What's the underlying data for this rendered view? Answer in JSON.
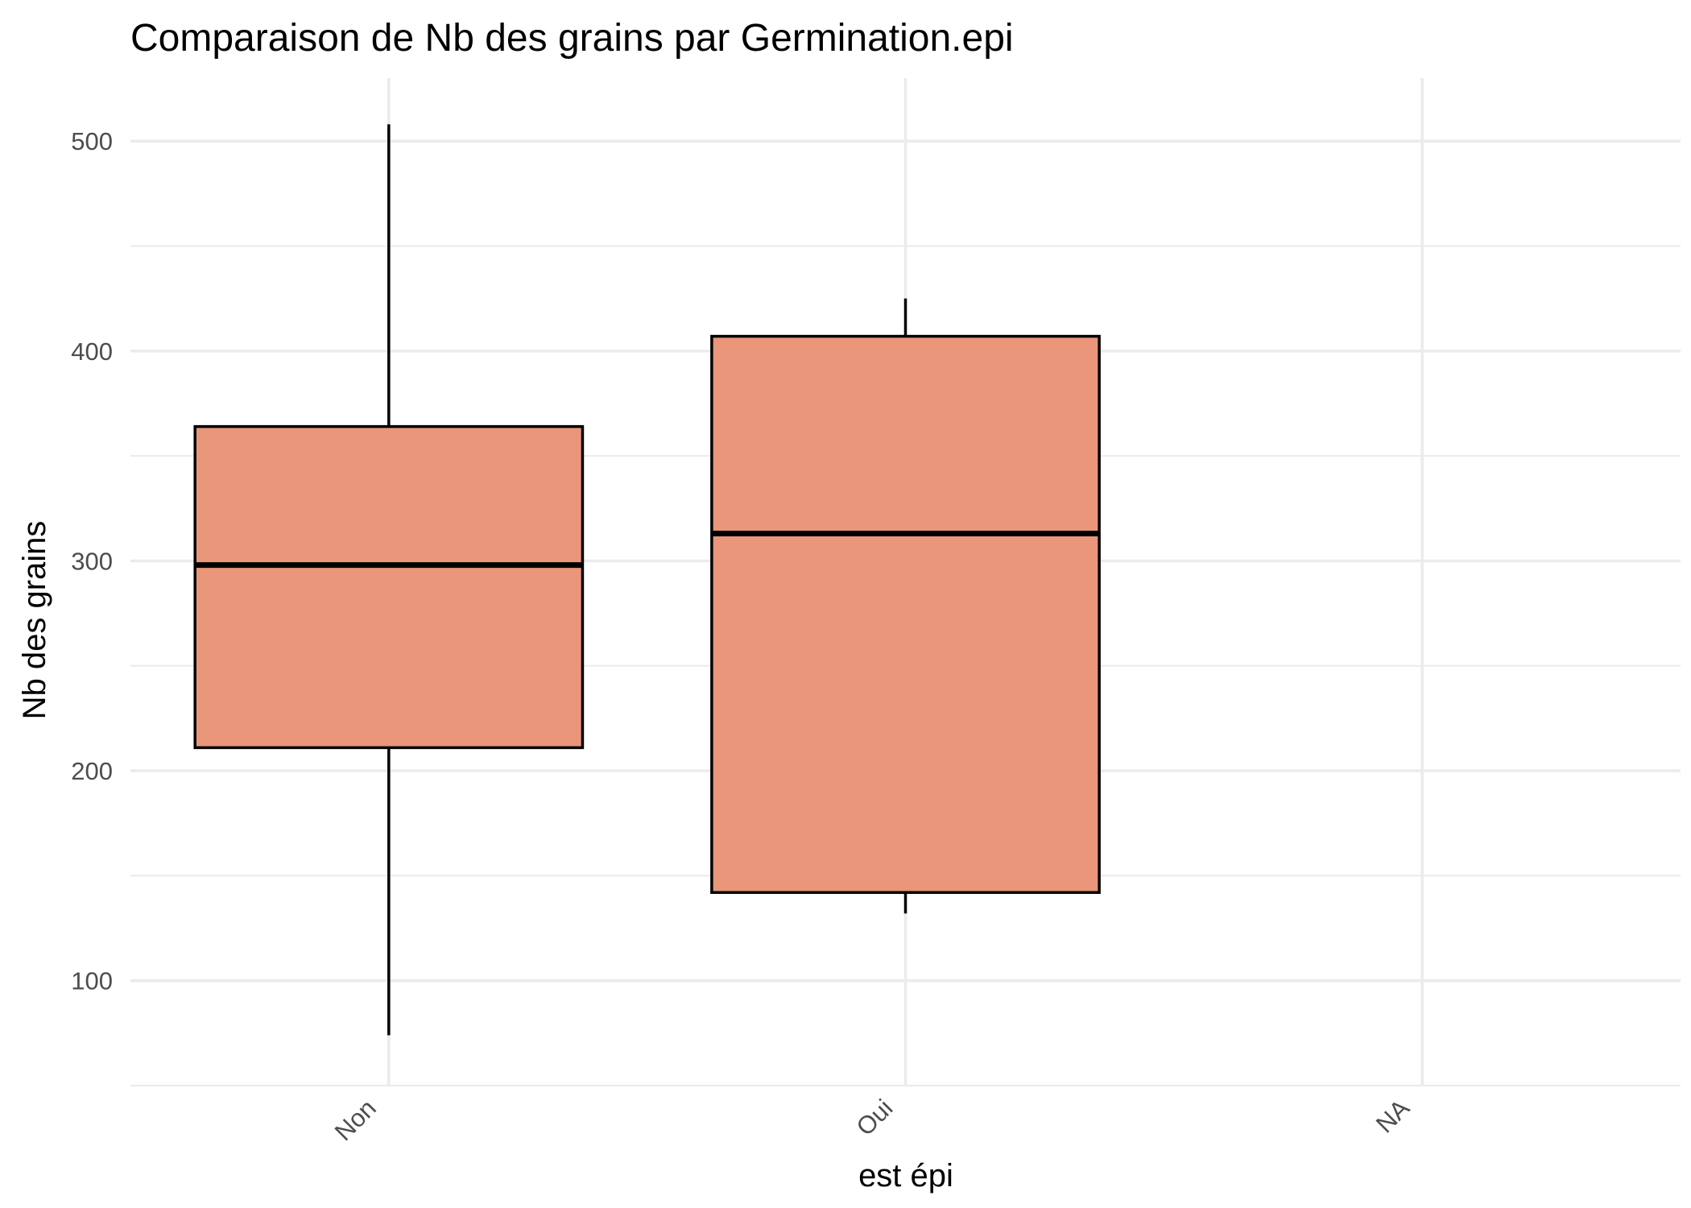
{
  "chart_data": {
    "type": "boxplot",
    "title": "Comparaison de Nb des grains par Germination.epi",
    "xlabel": "est épi",
    "ylabel": "Nb des grains",
    "categories": [
      "Non",
      "Oui",
      "NA"
    ],
    "boxes": [
      {
        "category": "Non",
        "whisker_low": 74,
        "q1": 211,
        "median": 298,
        "q3": 364,
        "whisker_high": 508
      },
      {
        "category": "Oui",
        "whisker_low": 132,
        "q1": 142,
        "median": 313,
        "q3": 407,
        "whisker_high": 425
      },
      {
        "category": "NA",
        "whisker_low": null,
        "q1": null,
        "median": null,
        "q3": null,
        "whisker_high": null
      }
    ],
    "y_ticks": [
      100,
      200,
      300,
      400,
      500
    ],
    "ylim": [
      50,
      530
    ],
    "grid": true,
    "legend": "none",
    "colors": {
      "box_fill": "#E9967A",
      "box_stroke": "#000000",
      "grid": "#EBEBEB",
      "tick_text": "#4D4D4D"
    }
  }
}
